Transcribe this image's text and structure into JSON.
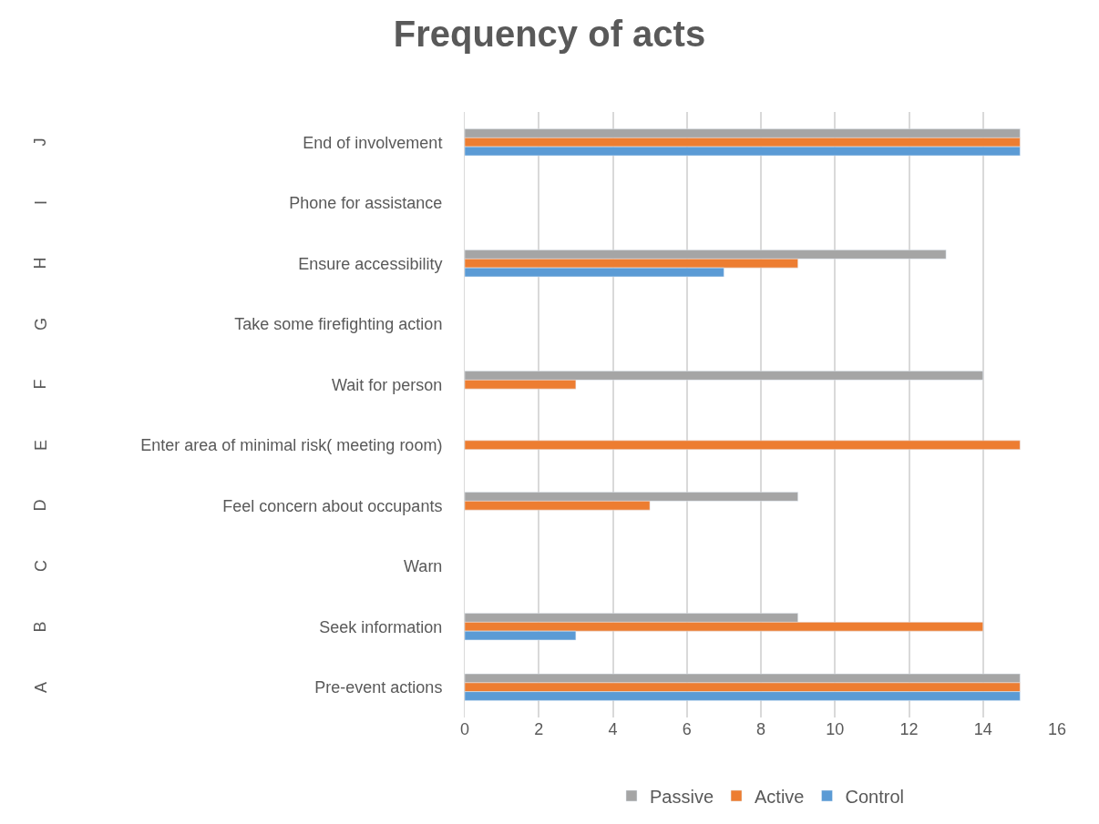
{
  "chart_data": {
    "type": "bar",
    "orientation": "horizontal",
    "title": "Frequency of acts",
    "categories": [
      "End of involvement",
      "Phone for assistance",
      "Ensure accessibility",
      "Take some firefighting action",
      "Wait for person",
      "Enter area of minimal risk( meeting room)",
      "Feel concern about occupants",
      "Warn",
      "Seek information",
      "Pre-event actions"
    ],
    "series": [
      {
        "name": "Passive",
        "color": "#a5a5a5",
        "values": [
          15,
          null,
          13,
          null,
          14,
          null,
          9,
          null,
          9,
          15
        ]
      },
      {
        "name": "Active",
        "color": "#ed7d31",
        "values": [
          15,
          null,
          9,
          null,
          3,
          15,
          5,
          null,
          14,
          15
        ]
      },
      {
        "name": "Control",
        "color": "#5b9bd5",
        "values": [
          15,
          null,
          7,
          null,
          null,
          null,
          null,
          null,
          3,
          15
        ]
      }
    ],
    "annotations": [
      "J",
      "I",
      "H",
      "G",
      "F",
      "E",
      "D",
      "C",
      "B",
      "A"
    ],
    "xlim": [
      0,
      16
    ],
    "xticks": [
      0,
      2,
      4,
      6,
      8,
      10,
      12,
      14,
      16
    ],
    "grid": "x",
    "legend": "bottom"
  }
}
